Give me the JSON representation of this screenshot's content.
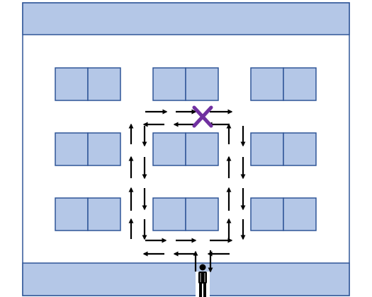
{
  "colors": {
    "fill": "#b4c7e7",
    "stroke": "#2f5597",
    "arrow": "#000000",
    "blocked_marker": "#7030a0",
    "person": "#000000"
  },
  "blocked_marker_icon": "x-mark-icon",
  "person_icon": "standing-person-icon",
  "shelf_grid": {
    "rows": 3,
    "columns": 3,
    "cells_per_shelf": 2
  },
  "arrow_direction_icons": [
    "arrow-right-icon",
    "arrow-left-icon",
    "arrow-up-icon",
    "arrow-down-icon"
  ]
}
